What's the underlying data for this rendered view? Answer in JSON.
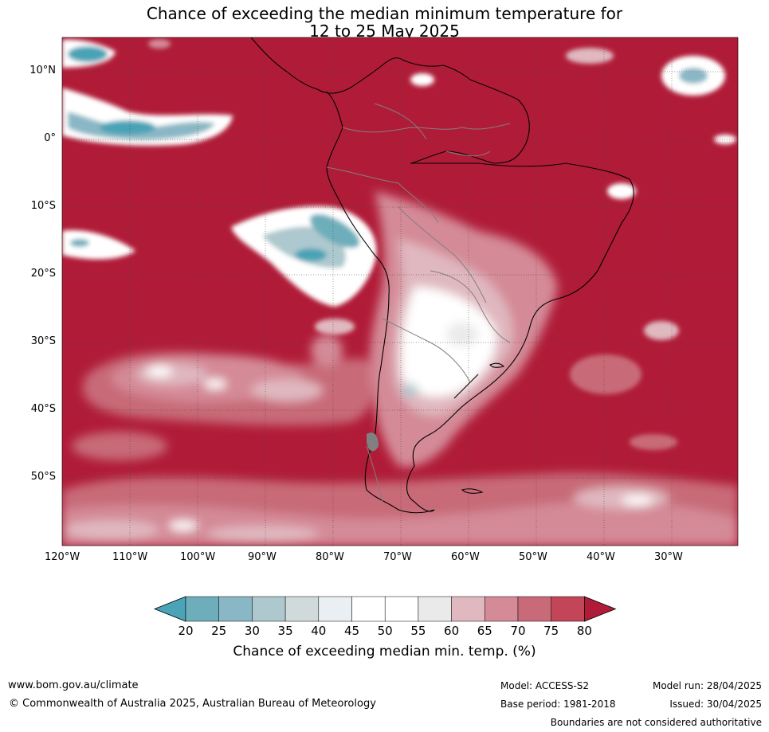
{
  "title": {
    "line1": "Chance of exceeding the median minimum temperature for",
    "line2": "12 to 25 May 2025"
  },
  "map": {
    "region": "South America and surrounding oceans",
    "background_color": "#b01c38",
    "lat_labels": [
      "10°N",
      "0°",
      "10°S",
      "20°S",
      "30°S",
      "40°S",
      "50°S"
    ],
    "lon_labels": [
      "120°W",
      "110°W",
      "100°W",
      "90°W",
      "80°W",
      "70°W",
      "60°W",
      "50°W",
      "40°W",
      "30°W"
    ]
  },
  "colorbar": {
    "title": "Chance of exceeding median min. temp. (%)",
    "ticks": [
      "20",
      "25",
      "30",
      "35",
      "40",
      "45",
      "50",
      "55",
      "60",
      "65",
      "70",
      "75",
      "80"
    ],
    "colors": [
      "#4aa3b6",
      "#6eaebb",
      "#8ab7c5",
      "#adc8ce",
      "#d1dadb",
      "#e9eff2",
      "#ffffff",
      "#ffffff",
      "#eaeaea",
      "#e0b8bf",
      "#d48a97",
      "#c86a78",
      "#c24658",
      "#b01c38"
    ]
  },
  "footer": {
    "website": "www.bom.gov.au/climate",
    "copyright": "© Commonwealth of Australia 2025, Australian Bureau of Meteorology",
    "model": "Model: ACCESS-S2",
    "base_period": "Base period: 1981-2018",
    "model_run": "Model run: 28/04/2025",
    "issued": "Issued: 30/04/2025",
    "disclaimer": "Boundaries are not considered authoritative"
  }
}
